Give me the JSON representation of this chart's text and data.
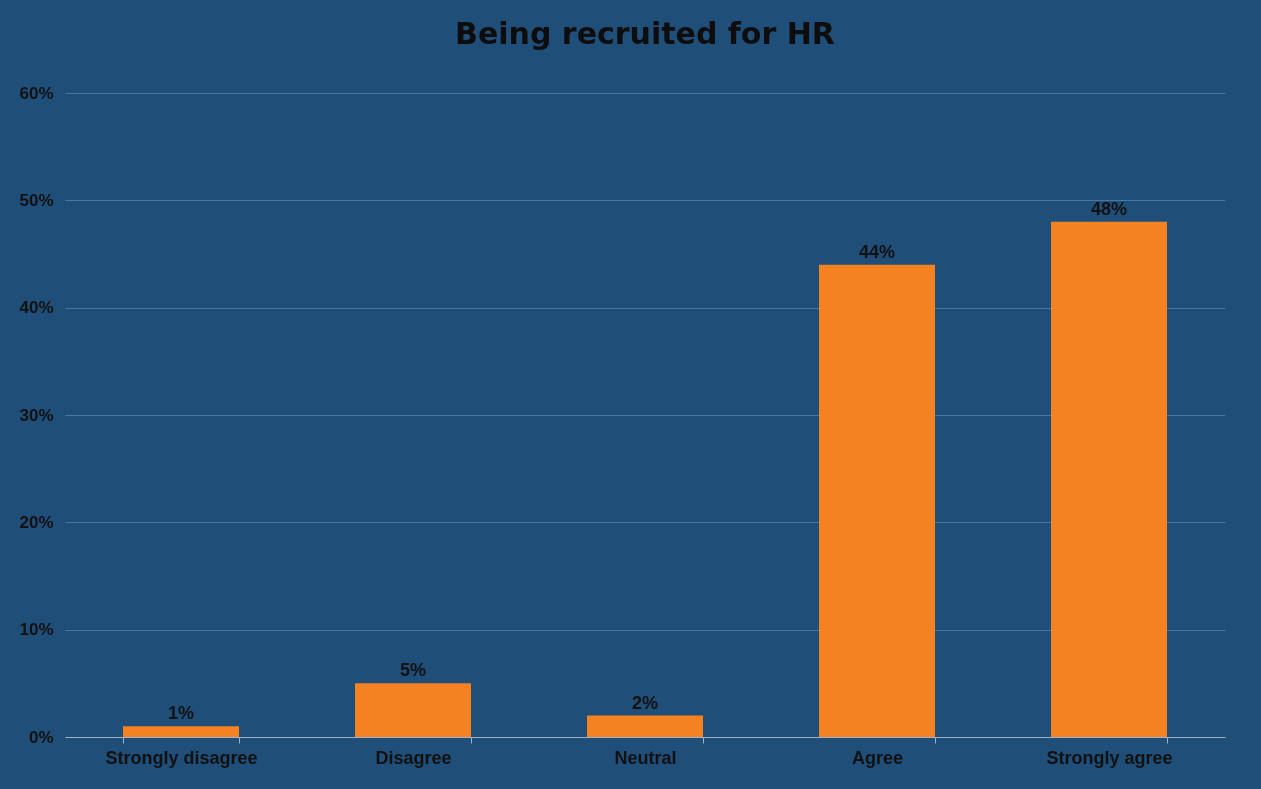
{
  "chart_data": {
    "type": "bar",
    "title": "Being recruited for HR",
    "categories": [
      "Strongly disagree",
      "Disagree",
      "Neutral",
      "Agree",
      "Strongly agree"
    ],
    "values": [
      1,
      5,
      2,
      44,
      48
    ],
    "value_labels": [
      "1%",
      "5%",
      "2%",
      "44%",
      "48%"
    ],
    "color": "#f58220",
    "ylim": [
      0,
      60
    ],
    "yticks": [
      {
        "value": 0,
        "label": "0%"
      },
      {
        "value": 10,
        "label": "10%"
      },
      {
        "value": 20,
        "label": "20%"
      },
      {
        "value": 30,
        "label": "30%"
      },
      {
        "value": 40,
        "label": "40%"
      },
      {
        "value": 50,
        "label": "50%"
      },
      {
        "value": 60,
        "label": "60%"
      }
    ],
    "grid": "y"
  }
}
